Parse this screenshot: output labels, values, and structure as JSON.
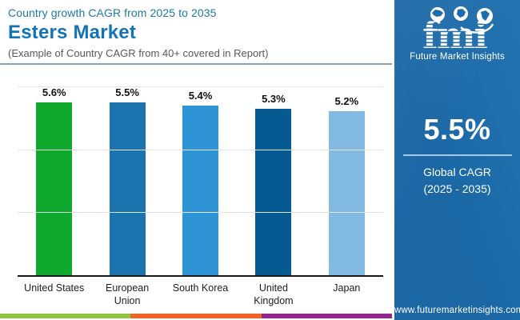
{
  "header": {
    "kicker": "Country growth CAGR from 2025 to 2035",
    "title": "Esters Market",
    "note": "(Example of Country CAGR from 40+ covered in Report)"
  },
  "chart_data": {
    "type": "bar",
    "title": "Esters Market — Country growth CAGR from 2025 to 2035",
    "categories": [
      "United States",
      "European Union",
      "South Korea",
      "United Kingdom",
      "Japan"
    ],
    "values": [
      5.6,
      5.5,
      5.4,
      5.3,
      5.2
    ],
    "value_labels": [
      "5.6%",
      "5.5%",
      "5.4%",
      "5.3%",
      "5.2%"
    ],
    "bar_colors": [
      "#0FA92D",
      "#1B74AE",
      "#2F94D6",
      "#065A92",
      "#83BAE2"
    ],
    "xlabel": "",
    "ylabel": "",
    "ylim": [
      0,
      6
    ],
    "gridlines_at": [
      2,
      4,
      6
    ],
    "grid": true,
    "legend": "none",
    "value_labels_position": "above-bars"
  },
  "sidebar": {
    "bg_color": "#1C6DAE",
    "logo": {
      "text": "fmi",
      "tagline": "Future Market Insights"
    },
    "stat_value": "5.5%",
    "stat_label_line1": "Global CAGR",
    "stat_label_line2": "(2025 - 2035)",
    "website": "www.futuremarketinsights.com"
  },
  "footer_strip_colors": [
    "#8DC63F",
    "#EE6425",
    "#92278F"
  ],
  "accent_colors": {
    "kicker_text": "#1E7AA9",
    "title_text": "#1273B8",
    "header_divider": "#7FA6BE",
    "axis_line": "#1a1a1a",
    "gridline": "#e4e4e4"
  }
}
